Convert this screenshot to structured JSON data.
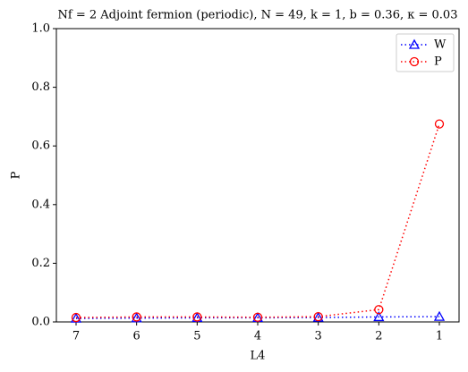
{
  "chart_data": {
    "type": "line",
    "title": "Nf = 2 Adjoint fermion (periodic), N = 49, k = 1, b = 0.36, κ = 0.03",
    "x_label": "L4",
    "y_label": "P",
    "x": [
      7,
      6,
      5,
      4,
      3,
      2,
      1
    ],
    "series": [
      {
        "name": "W",
        "color": "#0000ff",
        "marker": "triangle",
        "values": [
          0.012,
          0.013,
          0.014,
          0.014,
          0.015,
          0.017,
          0.018
        ]
      },
      {
        "name": "P",
        "color": "#ff0000",
        "marker": "circle",
        "values": [
          0.015,
          0.017,
          0.017,
          0.016,
          0.018,
          0.042,
          0.675
        ]
      }
    ],
    "xlim": [
      7.325,
      0.675
    ],
    "xticks": [
      7,
      6,
      5,
      4,
      3,
      2,
      1
    ],
    "ylim": [
      0,
      1
    ],
    "yticks": [
      {
        "value": 0,
        "label": "0.0"
      },
      {
        "value": 0.2,
        "label": "0.2"
      },
      {
        "value": 0.4,
        "label": "0.4"
      },
      {
        "value": 0.6,
        "label": "0.6"
      },
      {
        "value": 0.8,
        "label": "0.8"
      },
      {
        "value": 1,
        "label": "1.0"
      }
    ],
    "legend": "upper right",
    "grid": false
  }
}
